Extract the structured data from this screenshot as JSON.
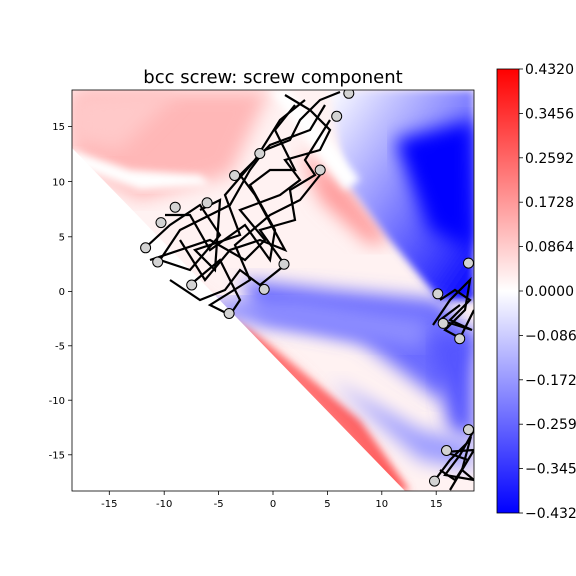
{
  "chart_data": {
    "type": "heatmap",
    "title": "bcc screw: screw component",
    "xlabel": "",
    "ylabel": "",
    "xlim": [
      -18.3,
      18.3
    ],
    "ylim": [
      -18.3,
      18.3
    ],
    "x_ticks": [
      -15,
      -10,
      -5,
      0,
      5,
      10,
      15
    ],
    "y_ticks": [
      -15,
      -10,
      -5,
      0,
      5,
      10,
      15
    ],
    "colorbar": {
      "colormap": "bwr",
      "range": [
        -0.432,
        0.432
      ],
      "ticks": [
        0.432,
        0.3456,
        0.2592,
        0.1728,
        0.0864,
        0.0,
        -0.0864,
        -0.1728,
        -0.2592,
        -0.3456,
        -0.432
      ],
      "tick_labels": [
        "0.4320",
        "0.3456",
        "0.2592",
        "0.1728",
        "0.0864",
        "0.0000",
        "−0.0864",
        "−0.1728",
        "−0.2592",
        "−0.3456",
        "−0.4320"
      ]
    },
    "colors": {
      "max": "#ff0000",
      "mid": "#ffffff",
      "min": "#0000ff",
      "arrows": "#000000",
      "atoms": "#d3d3d3"
    },
    "atom_markers": [
      {
        "x": -11.6,
        "y": 3.9
      },
      {
        "x": -10.2,
        "y": 6.2
      },
      {
        "x": -8.9,
        "y": 7.6
      },
      {
        "x": -10.5,
        "y": 2.6
      },
      {
        "x": -7.4,
        "y": 0.5
      },
      {
        "x": -4.0,
        "y": -2.1
      },
      {
        "x": -6.0,
        "y": 8.0
      },
      {
        "x": -3.5,
        "y": 10.5
      },
      {
        "x": -1.2,
        "y": 12.5
      },
      {
        "x": 1.0,
        "y": 2.4
      },
      {
        "x": -0.8,
        "y": 0.1
      },
      {
        "x": 4.3,
        "y": 11.0
      },
      {
        "x": 5.8,
        "y": 15.9
      },
      {
        "x": 6.9,
        "y": 18.0
      },
      {
        "x": 17.8,
        "y": 2.5
      },
      {
        "x": 15.0,
        "y": -0.3
      },
      {
        "x": 15.5,
        "y": -3.0
      },
      {
        "x": 17.0,
        "y": -4.4
      },
      {
        "x": 17.8,
        "y": -12.7
      },
      {
        "x": 15.8,
        "y": -14.6
      },
      {
        "x": 14.7,
        "y": -17.4
      }
    ]
  }
}
